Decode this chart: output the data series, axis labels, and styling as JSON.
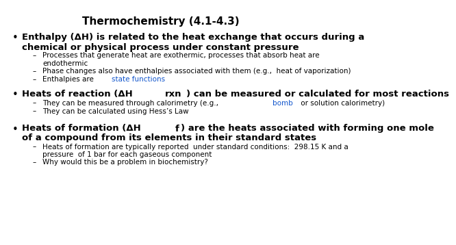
{
  "title": "Thermochemistry (4.1-4.3)",
  "bg": "#ffffff",
  "title_fs": 11,
  "items": [
    {
      "level": 0,
      "bold": true,
      "fs": 9.5,
      "lines": [
        "Enthalpy (ΔH) is related to the heat exchange that occurs during a",
        "chemical or physical process under constant pressure"
      ]
    },
    {
      "level": 1,
      "bold": false,
      "fs": 7.5,
      "lines": [
        "Processes that generate heat are exothermic, processes that absorb heat are",
        "endothermic"
      ]
    },
    {
      "level": 1,
      "bold": false,
      "fs": 7.5,
      "lines": [
        "Phase changes also have enthalpies associated with them (e.g.,  heat of vaporization)"
      ]
    },
    {
      "level": 1,
      "bold": false,
      "fs": 7.5,
      "parts": [
        {
          "t": "Enthalpies are ",
          "style": "normal"
        },
        {
          "t": "state functions",
          "style": "link"
        }
      ]
    },
    {
      "level": -1,
      "spacer": 8
    },
    {
      "level": 0,
      "bold": true,
      "fs": 9.5,
      "parts": [
        {
          "t": "Heats of reaction (ΔH",
          "style": "bold"
        },
        {
          "t": "rxn",
          "style": "bold_sub"
        },
        {
          "t": ") can be measured or calculated for most reactions",
          "style": "bold"
        }
      ]
    },
    {
      "level": 1,
      "bold": false,
      "fs": 7.5,
      "parts": [
        {
          "t": "They can be measured through calorimetry (e.g., ",
          "style": "normal"
        },
        {
          "t": "bomb",
          "style": "link"
        },
        {
          "t": " or solution calorimetry)",
          "style": "normal"
        }
      ]
    },
    {
      "level": 1,
      "bold": false,
      "fs": 7.5,
      "lines": [
        "They can be calculated using Hess’s Law"
      ]
    },
    {
      "level": -1,
      "spacer": 12
    },
    {
      "level": 0,
      "bold": true,
      "fs": 9.5,
      "parts": [
        {
          "t": "Heats of formation (ΔH",
          "style": "bold"
        },
        {
          "t": "f",
          "style": "bold_sub"
        },
        {
          "t": ") are the heats associated with forming one mole",
          "style": "bold"
        },
        {
          "t": "\nof a compound from its elements in their standard states",
          "style": "bold"
        }
      ]
    },
    {
      "level": 1,
      "bold": false,
      "fs": 7.5,
      "lines": [
        "Heats of formation are typically reported  under standard conditions:  298.15 K and a",
        "pressure  of 1 bar for each gaseous component"
      ]
    },
    {
      "level": 1,
      "bold": false,
      "fs": 7.5,
      "lines": [
        "Why would this be a problem in biochemistry?"
      ]
    }
  ]
}
